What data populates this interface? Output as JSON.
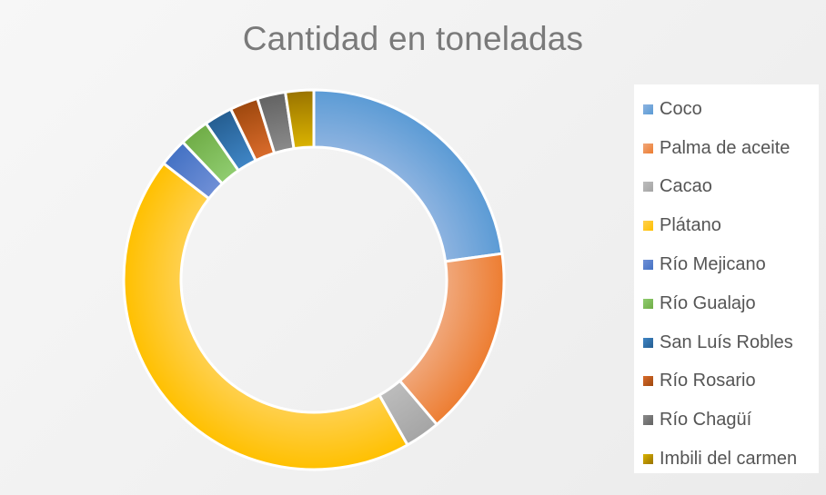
{
  "chart_data": {
    "type": "pie",
    "variant": "donut",
    "title": "Cantidad en toneladas",
    "legend_position": "right",
    "categories": [
      "Coco",
      "Palma de aceite",
      "Cacao",
      "Plátano",
      "Río Mejicano",
      "Río Gualajo",
      "San Luís Robles",
      "Río Rosario",
      "Río Chagüí",
      "Imbili del carmen"
    ],
    "values": [
      22.8,
      16.0,
      3.0,
      43.7,
      2.4,
      2.5,
      2.4,
      2.4,
      2.4,
      2.4
    ],
    "colors": [
      "#8db3e0",
      "#f0a77a",
      "#bcbcbc",
      "#ffd04d",
      "#6f8fd6",
      "#8fcc6f",
      "#3f85c5",
      "#d96b2b",
      "#8a8a8a",
      "#dab300"
    ],
    "colors_dark": [
      "#5b9bd5",
      "#ed7d31",
      "#a5a5a5",
      "#ffc000",
      "#4472c4",
      "#70ad47",
      "#255e91",
      "#9e480e",
      "#636363",
      "#997300"
    ]
  }
}
